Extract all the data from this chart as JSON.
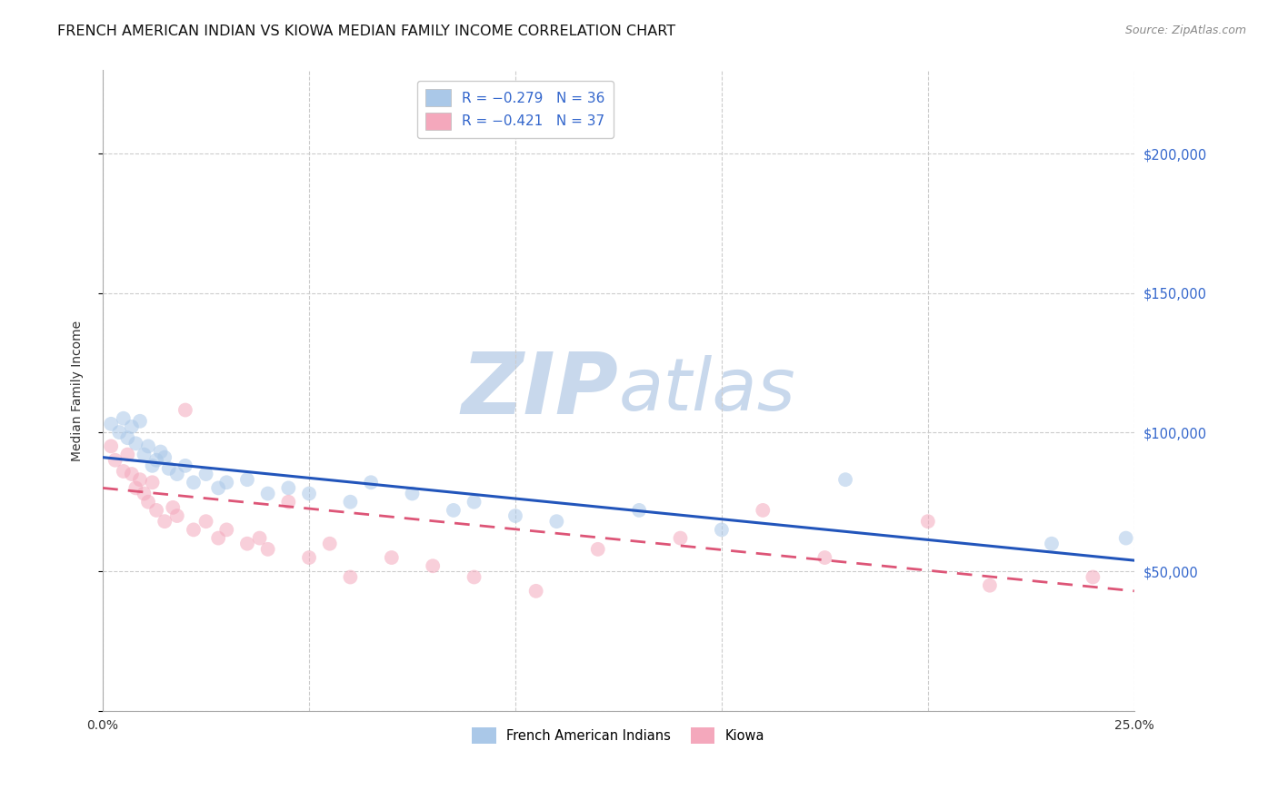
{
  "title": "FRENCH AMERICAN INDIAN VS KIOWA MEDIAN FAMILY INCOME CORRELATION CHART",
  "source": "Source: ZipAtlas.com",
  "ylabel": "Median Family Income",
  "xlim": [
    0,
    0.25
  ],
  "ylim": [
    0,
    230000
  ],
  "watermark_zip": "ZIP",
  "watermark_atlas": "atlas",
  "legend_items": [
    {
      "label": "R = -0.279   N = 36",
      "color": "#aac8e8"
    },
    {
      "label": "R = -0.421   N = 37",
      "color": "#f4a8bc"
    }
  ],
  "blue_scatter_x": [
    0.002,
    0.004,
    0.005,
    0.006,
    0.007,
    0.008,
    0.009,
    0.01,
    0.011,
    0.012,
    0.013,
    0.014,
    0.015,
    0.016,
    0.018,
    0.02,
    0.022,
    0.025,
    0.028,
    0.03,
    0.035,
    0.04,
    0.045,
    0.05,
    0.06,
    0.065,
    0.075,
    0.085,
    0.09,
    0.1,
    0.11,
    0.13,
    0.15,
    0.18,
    0.23,
    0.248
  ],
  "blue_scatter_y": [
    103000,
    100000,
    105000,
    98000,
    102000,
    96000,
    104000,
    92000,
    95000,
    88000,
    90000,
    93000,
    91000,
    87000,
    85000,
    88000,
    82000,
    85000,
    80000,
    82000,
    83000,
    78000,
    80000,
    78000,
    75000,
    82000,
    78000,
    72000,
    75000,
    70000,
    68000,
    72000,
    65000,
    83000,
    60000,
    62000
  ],
  "pink_scatter_x": [
    0.002,
    0.003,
    0.005,
    0.006,
    0.007,
    0.008,
    0.009,
    0.01,
    0.011,
    0.012,
    0.013,
    0.015,
    0.017,
    0.018,
    0.02,
    0.022,
    0.025,
    0.028,
    0.03,
    0.035,
    0.038,
    0.04,
    0.045,
    0.05,
    0.055,
    0.06,
    0.07,
    0.08,
    0.09,
    0.105,
    0.12,
    0.14,
    0.16,
    0.175,
    0.2,
    0.215,
    0.24
  ],
  "pink_scatter_y": [
    95000,
    90000,
    86000,
    92000,
    85000,
    80000,
    83000,
    78000,
    75000,
    82000,
    72000,
    68000,
    73000,
    70000,
    108000,
    65000,
    68000,
    62000,
    65000,
    60000,
    62000,
    58000,
    75000,
    55000,
    60000,
    48000,
    55000,
    52000,
    48000,
    43000,
    58000,
    62000,
    72000,
    55000,
    68000,
    45000,
    48000
  ],
  "blue_line_x0": 0.0,
  "blue_line_y0": 91000,
  "blue_line_x1": 0.25,
  "blue_line_y1": 54000,
  "pink_line_x0": 0.0,
  "pink_line_y0": 80000,
  "pink_line_x1": 0.25,
  "pink_line_y1": 43000,
  "blue_line_color": "#2255bb",
  "pink_line_color": "#dd5577",
  "scatter_alpha": 0.55,
  "scatter_size": 130,
  "grid_color": "#cccccc",
  "bg_color": "#ffffff",
  "title_fontsize": 11.5,
  "source_fontsize": 9,
  "ytick_color": "#3366cc",
  "ytick_values": [
    0,
    50000,
    100000,
    150000,
    200000
  ],
  "ytick_labels": [
    "",
    "$50,000",
    "$100,000",
    "$150,000",
    "$200,000"
  ],
  "xtick_values": [
    0.0,
    0.05,
    0.1,
    0.15,
    0.2,
    0.25
  ],
  "xtick_labels": [
    "0.0%",
    "",
    "",
    "",
    "",
    "25.0%"
  ]
}
